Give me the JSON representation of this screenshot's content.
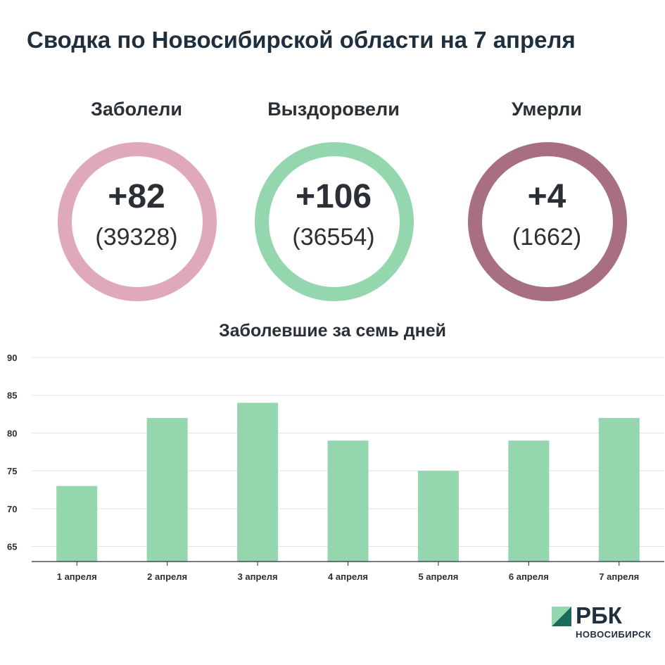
{
  "title": "Сводка по Новосибирской области на 7 апреля",
  "stats": [
    {
      "label": "Заболели",
      "delta": "+82",
      "total": "(39328)",
      "color": "#e0a9b9"
    },
    {
      "label": "Выздоровели",
      "delta": "+106",
      "total": "(36554)",
      "color": "#94d6ad"
    },
    {
      "label": "Умерли",
      "delta": "+4",
      "total": "(1662)",
      "color": "#a86f82"
    }
  ],
  "chart_data": {
    "type": "bar",
    "title": "Заболевшие за семь дней",
    "categories": [
      "1 апреля",
      "2 апреля",
      "3 апреля",
      "4 апреля",
      "5 апреля",
      "6 апреля",
      "7 апреля"
    ],
    "values": [
      73,
      82,
      84,
      79,
      75,
      79,
      82
    ],
    "xlabel": "",
    "ylabel": "",
    "ylim": [
      63,
      90
    ],
    "yticks": [
      65,
      70,
      75,
      80,
      85,
      90
    ],
    "grid": true,
    "bar_color": "#94d6ad"
  },
  "logo": {
    "name": "РБК",
    "subtitle": "НОВОСИБИРСК",
    "colors": [
      "#94d6ad",
      "#1a6b5a"
    ]
  }
}
